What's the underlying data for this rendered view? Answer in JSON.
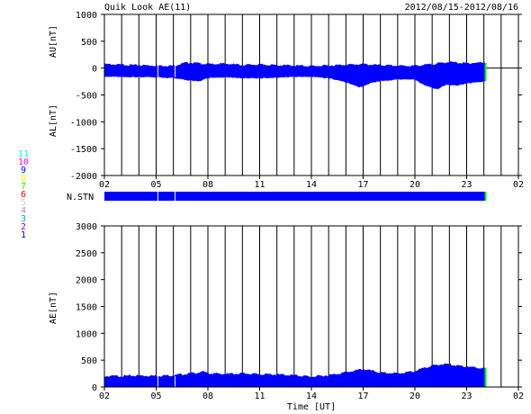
{
  "header": {
    "title": "Quik Look AE(11)",
    "date_range": "2012/08/15-2012/08/16"
  },
  "colors": {
    "fill": "#0000ff",
    "end_marker": "#00ff00",
    "frame": "#000000"
  },
  "legend": {
    "items": [
      {
        "label": "11",
        "color": "#00ffff"
      },
      {
        "label": "10",
        "color": "#ff00ff"
      },
      {
        "label": "9",
        "color": "#0000ff"
      },
      {
        "label": "8",
        "color": "#ffff00"
      },
      {
        "label": "7",
        "color": "#00ff00"
      },
      {
        "label": "6",
        "color": "#ff0000"
      },
      {
        "label": "5",
        "color": "#cccccc"
      },
      {
        "label": "4",
        "color": "#999999"
      },
      {
        "label": "3",
        "color": "#00aaaa"
      },
      {
        "label": "2",
        "color": "#aa00aa"
      },
      {
        "label": "1",
        "color": "#0000aa"
      }
    ]
  },
  "chart_data": [
    {
      "name": "AU/AL",
      "type": "area",
      "ylabel_top": "AU[nT]",
      "ylabel_bottom": "AL[nT]",
      "ylim": [
        -2000,
        1000
      ],
      "yticks": [
        1000,
        500,
        0,
        -500,
        -1000,
        -1500,
        -2000
      ],
      "xlim_hours": [
        2,
        26
      ],
      "xtick_labels": [
        "02",
        "05",
        "08",
        "11",
        "14",
        "17",
        "20",
        "23",
        "02"
      ],
      "grid": true,
      "data_end_hour": 24.1,
      "au_upper": [
        [
          2,
          70
        ],
        [
          3,
          60
        ],
        [
          4,
          50
        ],
        [
          5,
          45
        ],
        [
          6,
          40
        ],
        [
          6.6,
          90
        ],
        [
          7,
          100
        ],
        [
          8,
          70
        ],
        [
          9,
          80
        ],
        [
          10,
          55
        ],
        [
          11,
          65
        ],
        [
          12,
          50
        ],
        [
          13,
          45
        ],
        [
          14,
          35
        ],
        [
          15,
          45
        ],
        [
          16,
          60
        ],
        [
          17,
          70
        ],
        [
          18,
          50
        ],
        [
          19,
          40
        ],
        [
          20,
          40
        ],
        [
          21,
          70
        ],
        [
          21.7,
          100
        ],
        [
          22,
          110
        ],
        [
          23,
          85
        ],
        [
          23.5,
          95
        ],
        [
          24,
          100
        ]
      ],
      "al_lower": [
        [
          2,
          -150
        ],
        [
          3,
          -150
        ],
        [
          4,
          -155
        ],
        [
          5,
          -160
        ],
        [
          6,
          -170
        ],
        [
          6.8,
          -210
        ],
        [
          7.5,
          -230
        ],
        [
          8,
          -170
        ],
        [
          9,
          -160
        ],
        [
          10,
          -175
        ],
        [
          11,
          -180
        ],
        [
          12,
          -165
        ],
        [
          13,
          -150
        ],
        [
          14,
          -150
        ],
        [
          15,
          -175
        ],
        [
          16,
          -250
        ],
        [
          16.8,
          -350
        ],
        [
          17.5,
          -260
        ],
        [
          18,
          -230
        ],
        [
          19,
          -200
        ],
        [
          20,
          -200
        ],
        [
          20.5,
          -300
        ],
        [
          21.3,
          -380
        ],
        [
          21.8,
          -300
        ],
        [
          22.5,
          -310
        ],
        [
          23,
          -270
        ],
        [
          23.5,
          -260
        ],
        [
          24,
          -240
        ]
      ]
    },
    {
      "name": "N.STN",
      "type": "bar",
      "label": "N.STN",
      "xlim_hours": [
        2,
        26
      ],
      "station_count": 11,
      "data_end_hour": 24.1
    },
    {
      "name": "AE",
      "type": "area",
      "ylabel": "AE[nT]",
      "ylim": [
        0,
        3000
      ],
      "yticks": [
        3000,
        2500,
        2000,
        1500,
        1000,
        500,
        0
      ],
      "xlim_hours": [
        2,
        26
      ],
      "xtick_labels": [
        "02",
        "05",
        "08",
        "11",
        "14",
        "17",
        "20",
        "23",
        "02"
      ],
      "xlabel": "Time [UT]",
      "grid": true,
      "data_end_hour": 24.1,
      "values": [
        [
          2,
          200
        ],
        [
          3,
          200
        ],
        [
          4,
          210
        ],
        [
          5,
          205
        ],
        [
          6,
          215
        ],
        [
          7,
          250
        ],
        [
          7.8,
          280
        ],
        [
          8,
          250
        ],
        [
          9,
          240
        ],
        [
          10,
          250
        ],
        [
          11,
          235
        ],
        [
          12,
          230
        ],
        [
          13,
          215
        ],
        [
          14,
          190
        ],
        [
          15,
          215
        ],
        [
          16,
          270
        ],
        [
          17,
          330
        ],
        [
          17.8,
          280
        ],
        [
          18,
          260
        ],
        [
          19,
          250
        ],
        [
          20,
          290
        ],
        [
          20.8,
          380
        ],
        [
          21.5,
          420
        ],
        [
          22,
          420
        ],
        [
          22.5,
          390
        ],
        [
          23,
          380
        ],
        [
          23.5,
          360
        ],
        [
          24,
          340
        ]
      ]
    }
  ]
}
